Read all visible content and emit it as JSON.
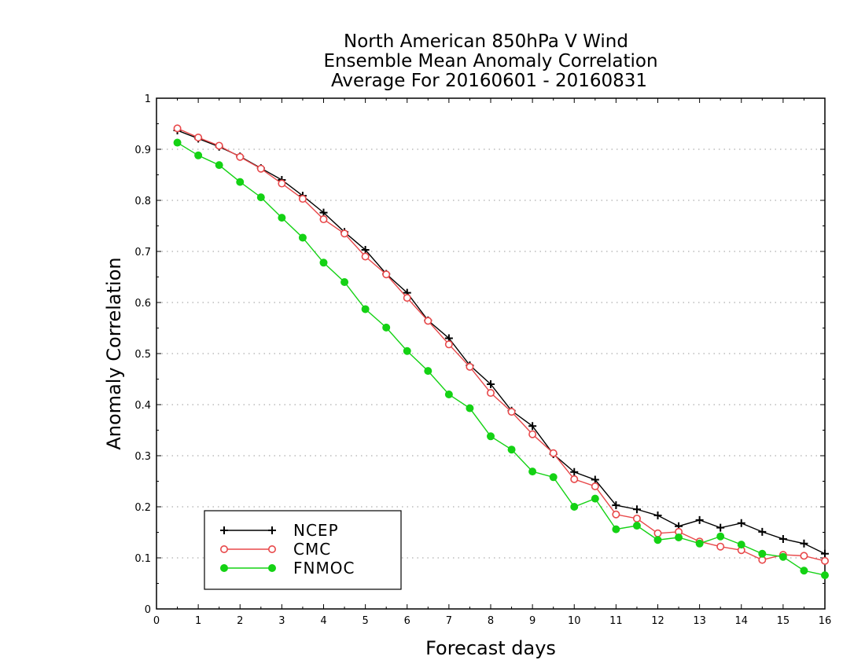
{
  "chart_data": {
    "type": "line",
    "title": [
      "North American 850hPa V Wind",
      "Ensemble Mean Anomaly Correlation",
      "Average For 20160601 - 20160831"
    ],
    "xlabel": "Forecast days",
    "ylabel": "Anomaly Correlation",
    "xlim": [
      0,
      16
    ],
    "ylim": [
      0,
      1
    ],
    "xticks": [
      0,
      1,
      2,
      3,
      4,
      5,
      6,
      7,
      8,
      9,
      10,
      11,
      12,
      13,
      14,
      15,
      16
    ],
    "yticks": [
      0,
      0.1,
      0.2,
      0.3,
      0.4,
      0.5,
      0.6,
      0.7,
      0.8,
      0.9,
      1
    ],
    "ytick_labels": [
      "0",
      "0.1",
      "0.2",
      "0.3",
      "0.4",
      "0.5",
      "0.6",
      "0.7",
      "0.8",
      "0.9",
      "1"
    ],
    "grid": "dotted horizontal",
    "legend_position": "bottom-left",
    "x": [
      0.5,
      1,
      1.5,
      2,
      2.5,
      3,
      3.5,
      4,
      4.5,
      5,
      5.5,
      6,
      6.5,
      7,
      7.5,
      8,
      8.5,
      9,
      9.5,
      10,
      10.5,
      11,
      11.5,
      12,
      12.5,
      13,
      13.5,
      14,
      14.5,
      15,
      15.5,
      16
    ],
    "series": [
      {
        "name": "NCEP",
        "color": "#000000",
        "marker": "plus",
        "values": [
          0.937,
          0.921,
          0.905,
          0.886,
          0.863,
          0.84,
          0.809,
          0.776,
          0.738,
          0.703,
          0.656,
          0.619,
          0.565,
          0.53,
          0.477,
          0.44,
          0.388,
          0.358,
          0.303,
          0.268,
          0.253,
          0.203,
          0.195,
          0.183,
          0.162,
          0.174,
          0.159,
          0.168,
          0.151,
          0.137,
          0.128,
          0.108
        ]
      },
      {
        "name": "CMC",
        "color": "#e8484a",
        "marker": "open-circle",
        "values": [
          0.941,
          0.923,
          0.907,
          0.885,
          0.862,
          0.833,
          0.803,
          0.763,
          0.735,
          0.69,
          0.655,
          0.609,
          0.564,
          0.518,
          0.474,
          0.423,
          0.386,
          0.342,
          0.305,
          0.254,
          0.24,
          0.185,
          0.177,
          0.148,
          0.151,
          0.132,
          0.122,
          0.115,
          0.096,
          0.106,
          0.104,
          0.094
        ]
      },
      {
        "name": "FNMOC",
        "color": "#14d214",
        "marker": "filled-circle",
        "values": [
          0.913,
          0.888,
          0.869,
          0.836,
          0.806,
          0.766,
          0.727,
          0.678,
          0.64,
          0.587,
          0.551,
          0.505,
          0.466,
          0.42,
          0.393,
          0.338,
          0.312,
          0.269,
          0.258,
          0.2,
          0.216,
          0.156,
          0.163,
          0.135,
          0.14,
          0.128,
          0.142,
          0.126,
          0.108,
          0.102,
          0.075,
          0.066
        ]
      }
    ]
  }
}
